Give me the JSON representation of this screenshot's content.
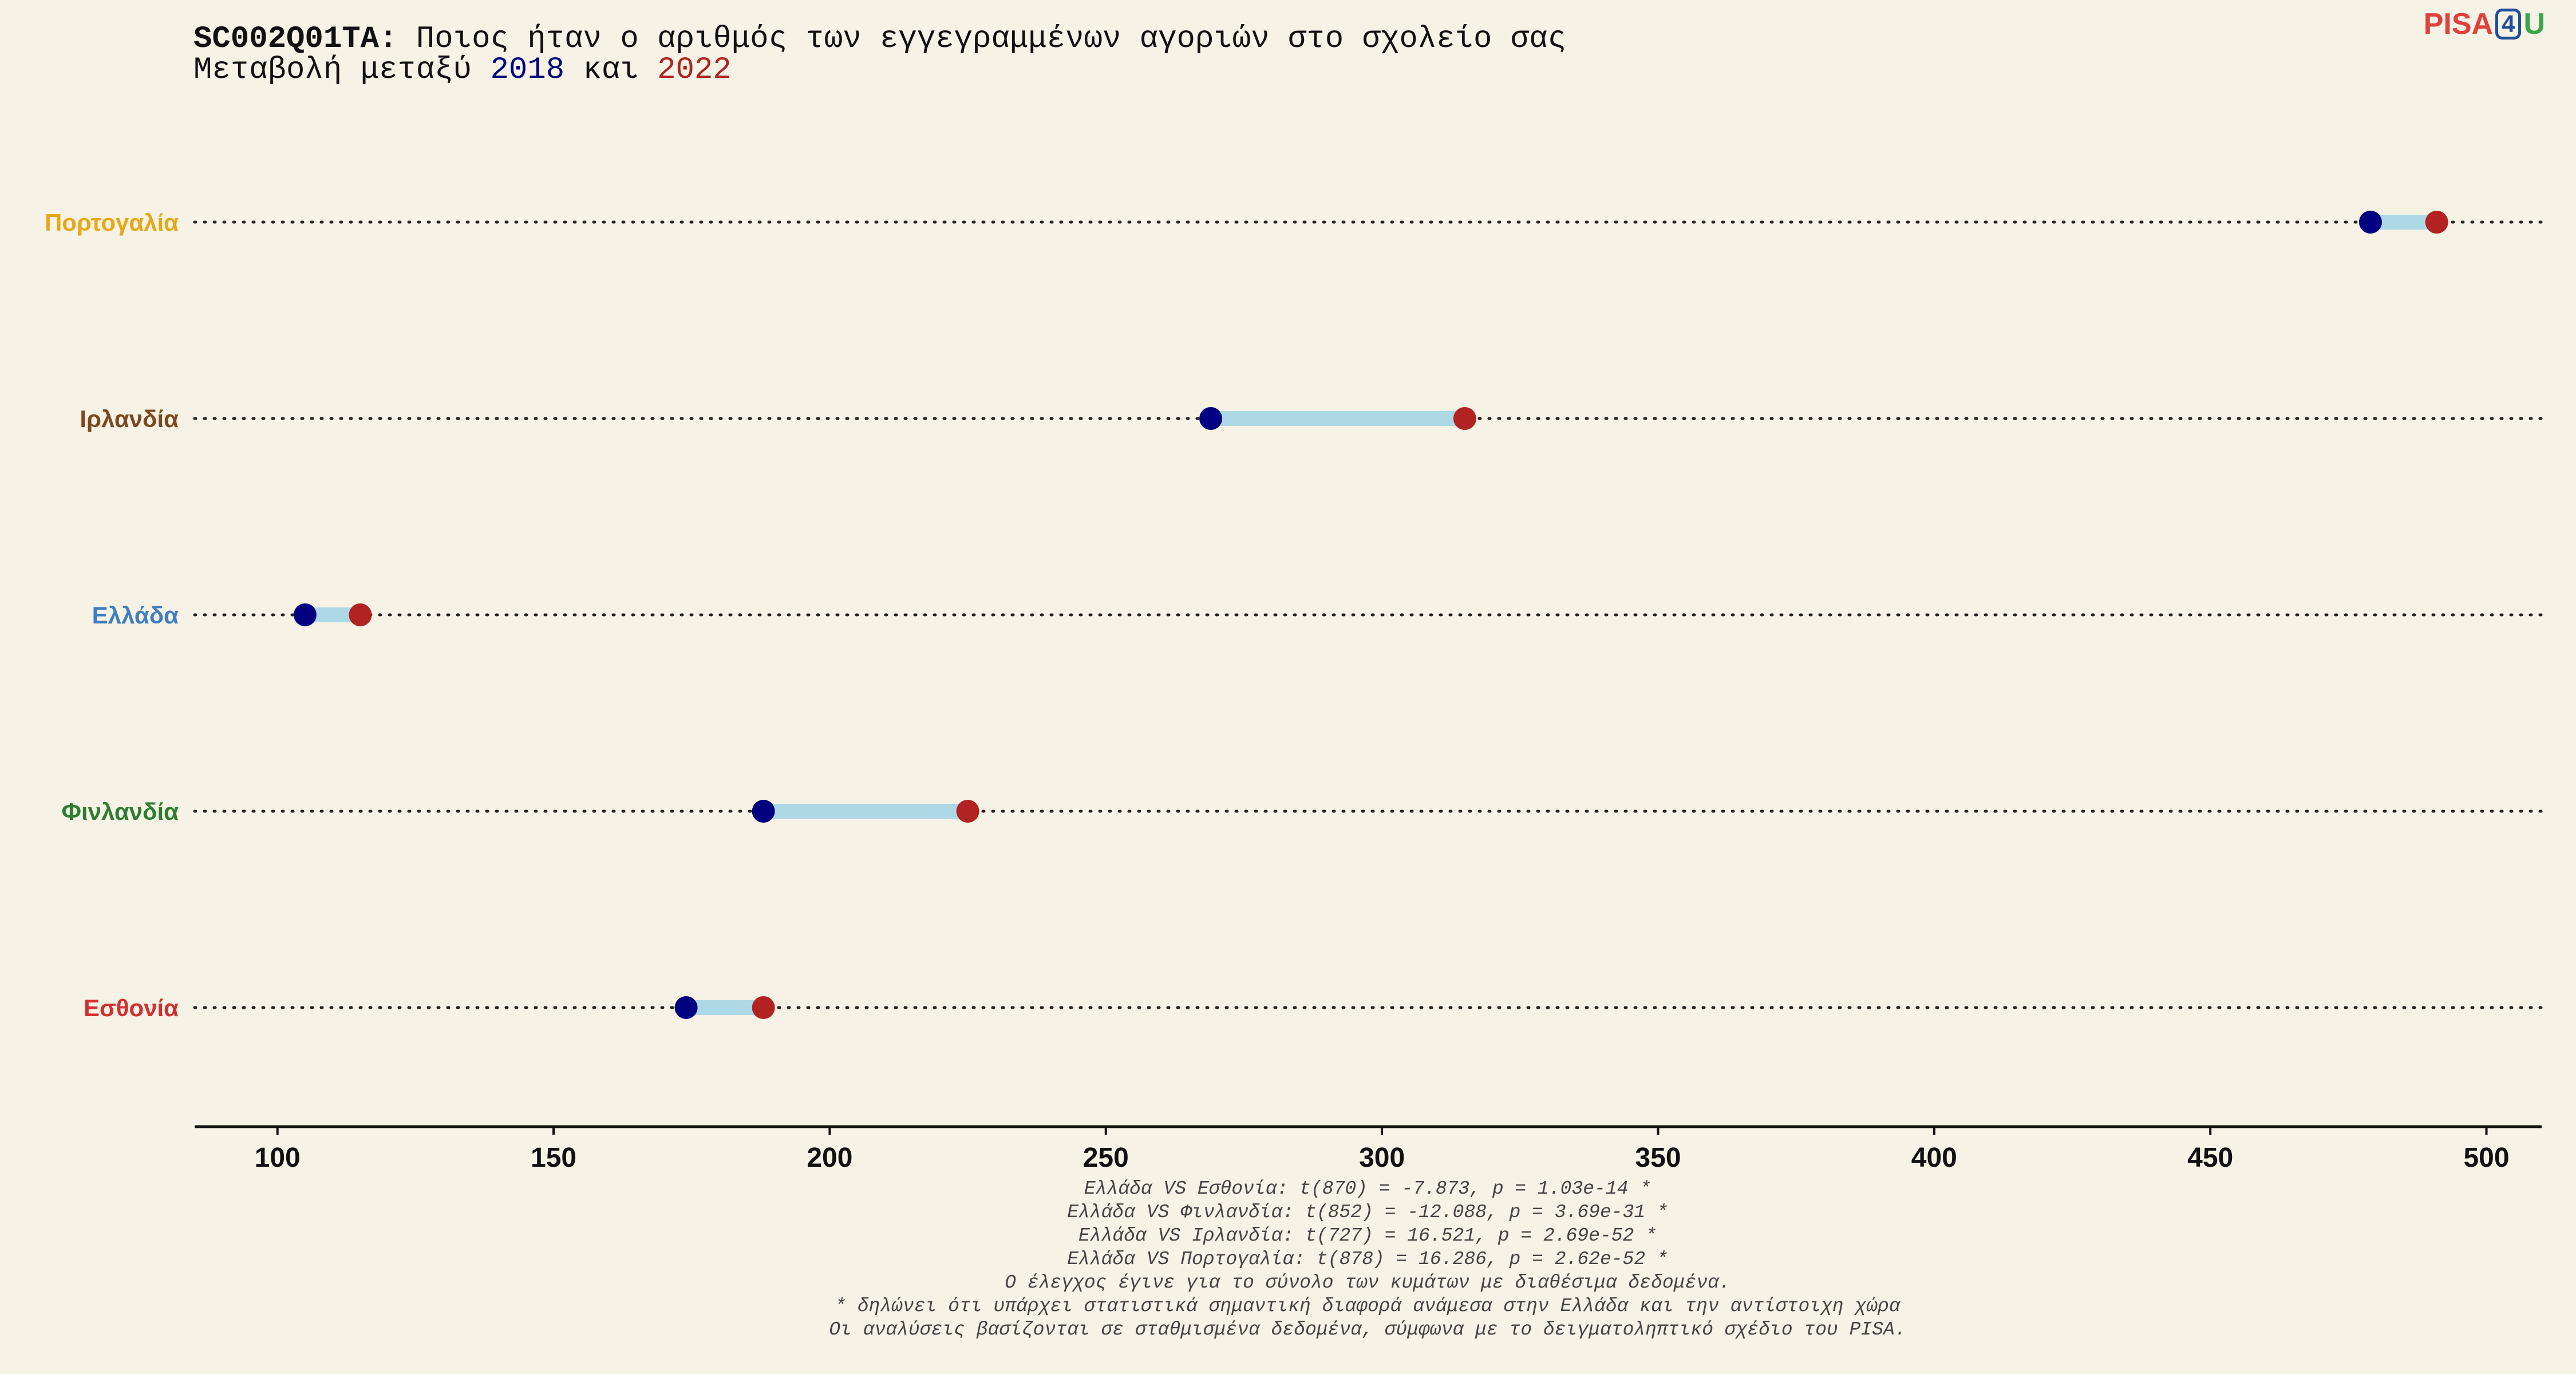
{
  "title": {
    "code": "SC002Q01TA:",
    "question": " Ποιος ήταν ο αριθμός των εγγεγραμμένων αγοριών στο σχολείο σας",
    "subtitle_prefix": "Μεταβολή μεταξύ ",
    "year1": "2018",
    "connector": " και ",
    "year2": "2022"
  },
  "logo": {
    "pisa": "PISA",
    "four": "4",
    "u": "U"
  },
  "colors": {
    "year2018": "#000080",
    "year2022": "#b22222",
    "bar": "#add8e6",
    "background": "#f7f2e6"
  },
  "chart_data": {
    "type": "dumbbell",
    "x_ticks": [
      "100",
      "150",
      "200",
      "250",
      "300",
      "350",
      "400",
      "450",
      "500"
    ],
    "xlim": [
      85,
      510
    ],
    "grid": "dotted horizontal guide lines per category",
    "categories": [
      {
        "label": "Πορτογαλία",
        "color": "#e6a817",
        "v2018": 479,
        "v2022": 491
      },
      {
        "label": "Ιρλανδία",
        "color": "#7a4a1e",
        "v2018": 269,
        "v2022": 315
      },
      {
        "label": "Ελλάδα",
        "color": "#3f7fbf",
        "v2018": 105,
        "v2022": 115
      },
      {
        "label": "Φινλανδία",
        "color": "#2e7d32",
        "v2018": 188,
        "v2022": 225
      },
      {
        "label": "Εσθονία",
        "color": "#d32f2f",
        "v2018": 174,
        "v2022": 188
      }
    ]
  },
  "footnotes": [
    "Ελλάδα VS Εσθονία: t(870) = -7.873, p = 1.03e-14 *",
    "Ελλάδα VS Φινλανδία: t(852) = -12.088, p = 3.69e-31 *",
    "Ελλάδα VS Ιρλανδία: t(727) = 16.521, p = 2.69e-52 *",
    "Ελλάδα VS Πορτογαλία: t(878) = 16.286, p = 2.62e-52 *",
    "Ο έλεγχος έγινε για το σύνολο των κυμάτων με διαθέσιμα δεδομένα.",
    "* δηλώνει ότι υπάρχει στατιστικά σημαντική διαφορά ανάμεσα στην Ελλάδα και την αντίστοιχη χώρα",
    "Οι αναλύσεις βασίζονται σε σταθμισμένα δεδομένα, σύμφωνα με το δειγματοληπτικό σχέδιο του PISA."
  ]
}
